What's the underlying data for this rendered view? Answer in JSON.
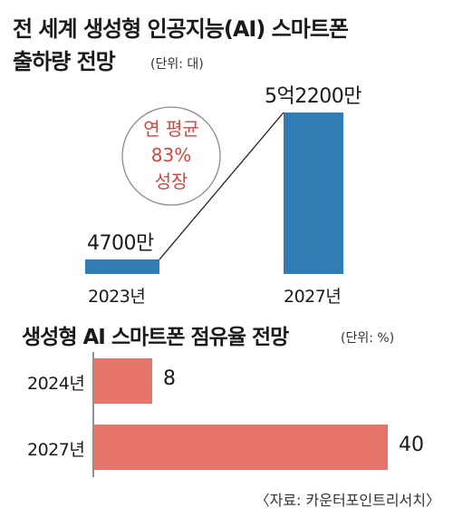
{
  "colors": {
    "bar_blue": "#2f7db4",
    "bar_red": "#e5756a",
    "circle_text": "#c94a43",
    "line": "#222222"
  },
  "chart_data": [
    {
      "type": "bar",
      "title_line1": "전 세계 생성형 인공지능(AI) 스마트폰",
      "title_line2": "출하량 전망",
      "unit": "(단위: 대)",
      "categories": [
        "2023년",
        "2027년"
      ],
      "values": [
        47000000,
        522000000
      ],
      "data_labels": [
        "4700만",
        "5억2200만"
      ],
      "annotation": [
        "연 평균",
        "83%",
        "성장"
      ],
      "orientation": "vertical"
    },
    {
      "type": "bar",
      "title": "생성형 AI 스마트폰 점유율 전망",
      "unit": "(단위: %)",
      "categories": [
        "2024년",
        "2027년"
      ],
      "values": [
        8,
        40
      ],
      "data_labels": [
        "8",
        "40"
      ],
      "orientation": "horizontal"
    }
  ],
  "source": "〈자료: 카운터포인트리서치〉"
}
